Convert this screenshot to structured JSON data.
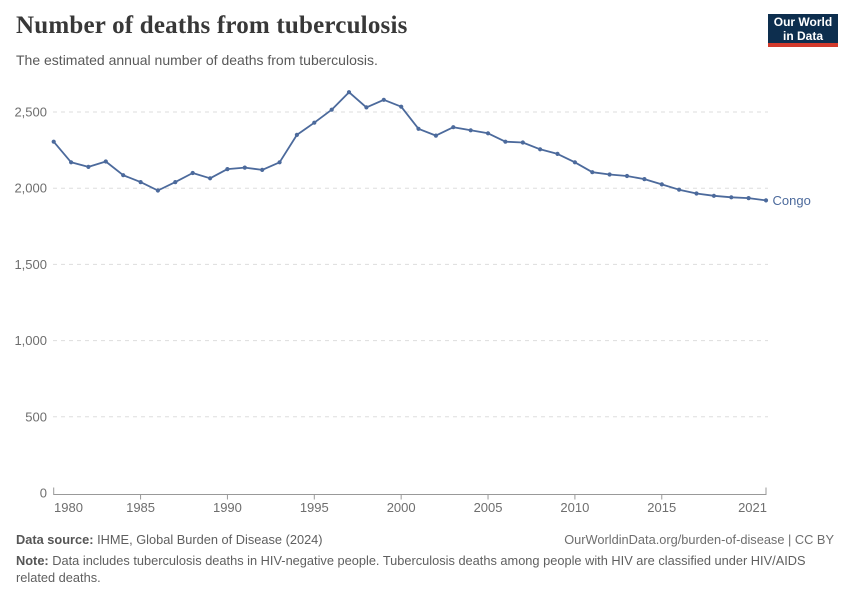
{
  "header": {
    "title": "Number of deaths from tuberculosis",
    "subtitle": "The estimated annual number of deaths from tuberculosis."
  },
  "logo": {
    "line1": "Our World",
    "line2": "in Data",
    "bg_color": "#0d2e4e",
    "accent_color": "#d23a2c"
  },
  "chart_data": {
    "type": "line",
    "title": "Number of deaths from tuberculosis",
    "x": [
      1980,
      1981,
      1982,
      1983,
      1984,
      1985,
      1986,
      1987,
      1988,
      1989,
      1990,
      1991,
      1992,
      1993,
      1994,
      1995,
      1996,
      1997,
      1998,
      1999,
      2000,
      2001,
      2002,
      2003,
      2004,
      2005,
      2006,
      2007,
      2008,
      2009,
      2010,
      2011,
      2012,
      2013,
      2014,
      2015,
      2016,
      2017,
      2018,
      2019,
      2020,
      2021
    ],
    "series": [
      {
        "name": "Congo",
        "color": "#4C6A9C",
        "values": [
          2305,
          2170,
          2140,
          2175,
          2085,
          2040,
          1985,
          2040,
          2100,
          2065,
          2125,
          2135,
          2120,
          2170,
          2350,
          2430,
          2515,
          2630,
          2530,
          2580,
          2535,
          2390,
          2345,
          2400,
          2380,
          2360,
          2305,
          2300,
          2255,
          2225,
          2170,
          2105,
          2090,
          2080,
          2060,
          2025,
          1990,
          1965,
          1950,
          1940,
          1935,
          1920
        ]
      }
    ],
    "xlabel": "",
    "ylabel": "",
    "xlim": [
      1980,
      2021
    ],
    "ylim": [
      0,
      2730
    ],
    "x_ticks": [
      1980,
      1985,
      1990,
      1995,
      2000,
      2005,
      2010,
      2015,
      2021
    ],
    "y_ticks": [
      0,
      500,
      1000,
      1500,
      2000,
      2500
    ],
    "y_tick_labels": [
      "0",
      "500",
      "1,000",
      "1,500",
      "2,000",
      "2,500"
    ],
    "grid": "horizontal-dashed",
    "legend_position": "end-of-line",
    "end_label": "Congo",
    "gridline_color": "#dddddd",
    "axis_color": "#999999",
    "tick_label_color": "#6e6e6e"
  },
  "footer": {
    "datasource_label": "Data source:",
    "datasource_value": " IHME, Global Burden of Disease (2024)",
    "link": "OurWorldinData.org/burden-of-disease | CC BY",
    "note_label": "Note:",
    "note_value": " Data includes tuberculosis deaths in HIV-negative people. Tuberculosis deaths among people with HIV are classified under HIV/AIDS related deaths."
  }
}
